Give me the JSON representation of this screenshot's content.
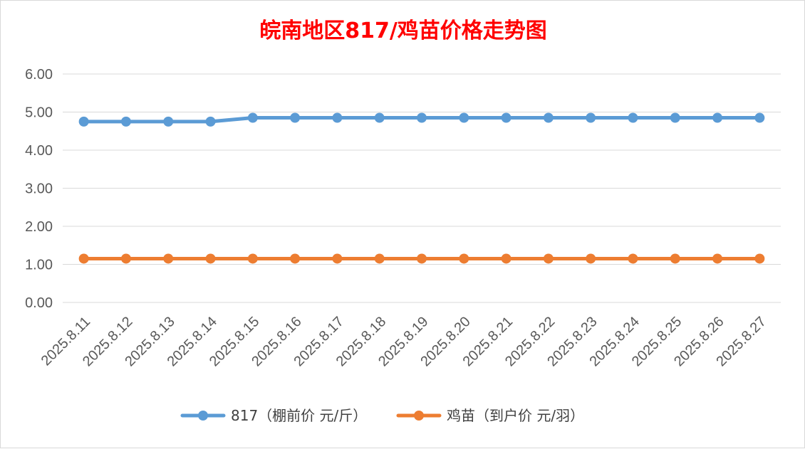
{
  "chart_data": {
    "type": "line",
    "title": "皖南地区817/鸡苗价格走势图",
    "xlabel": "",
    "ylabel": "",
    "ylim": [
      0,
      6
    ],
    "yticks": [
      "0.00",
      "1.00",
      "2.00",
      "3.00",
      "4.00",
      "5.00",
      "6.00"
    ],
    "grid": true,
    "legend_position": "bottom",
    "categories": [
      "2025.8.11",
      "2025.8.12",
      "2025.8.13",
      "2025.8.14",
      "2025.8.15",
      "2025.8.16",
      "2025.8.17",
      "2025.8.18",
      "2025.8.19",
      "2025.8.20",
      "2025.8.21",
      "2025.8.22",
      "2025.8.23",
      "2025.8.24",
      "2025.8.25",
      "2025.8.26",
      "2025.8.27"
    ],
    "series": [
      {
        "name": "817（棚前价 元/斤）",
        "color": "#5b9bd5",
        "values": [
          4.75,
          4.75,
          4.75,
          4.75,
          4.85,
          4.85,
          4.85,
          4.85,
          4.85,
          4.85,
          4.85,
          4.85,
          4.85,
          4.85,
          4.85,
          4.85,
          4.85
        ]
      },
      {
        "name": "鸡苗（到户价 元/羽）",
        "color": "#ed7d31",
        "values": [
          1.15,
          1.15,
          1.15,
          1.15,
          1.15,
          1.15,
          1.15,
          1.15,
          1.15,
          1.15,
          1.15,
          1.15,
          1.15,
          1.15,
          1.15,
          1.15,
          1.15
        ]
      }
    ]
  }
}
